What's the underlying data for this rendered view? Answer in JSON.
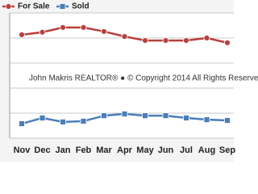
{
  "chart_data": {
    "type": "line",
    "categories": [
      "Nov",
      "Dec",
      "Jan",
      "Feb",
      "Mar",
      "Apr",
      "May",
      "Jun",
      "Jul",
      "Aug",
      "Sep"
    ],
    "series": [
      {
        "name": "For Sale",
        "color": "#b8403d",
        "marker": "circle",
        "values": [
          4.13,
          4.23,
          4.42,
          4.42,
          4.26,
          4.06,
          3.9,
          3.9,
          3.9,
          4.0,
          3.81
        ]
      },
      {
        "name": "Sold",
        "color": "#4a7ebb",
        "marker": "square",
        "values": [
          0.58,
          0.81,
          0.65,
          0.68,
          0.9,
          0.97,
          0.9,
          0.9,
          0.81,
          0.74,
          0.71
        ]
      }
    ],
    "annotation": "John Makris REALTOR® ● © Copyright 2014 All Rights Reserve",
    "ylim": [
      0,
      5
    ],
    "yticks": [
      0,
      1,
      2,
      3,
      4,
      5
    ],
    "grid": true,
    "legend": "top-left"
  }
}
